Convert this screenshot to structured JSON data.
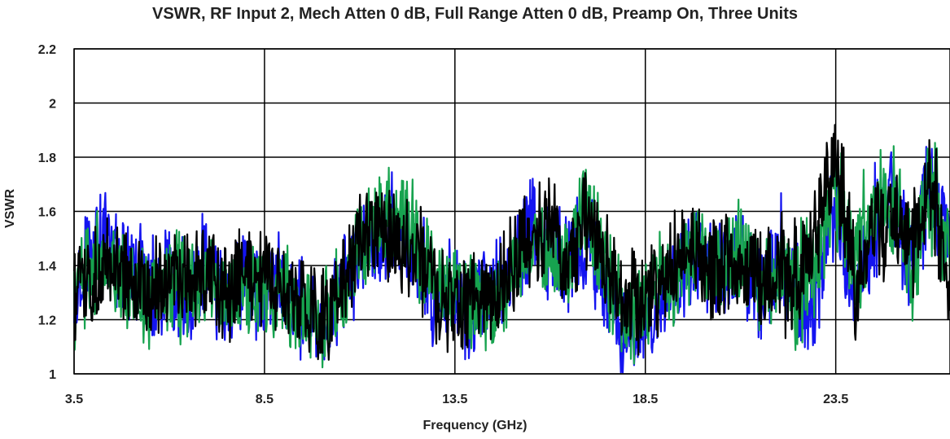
{
  "chart_data": {
    "type": "line",
    "title": "VSWR, RF Input 2, Mech Atten 0 dB, Full Range Atten 0 dB, Preamp On, Three Units",
    "xlabel": "Frequency (GHz)",
    "ylabel": "VSWR",
    "xlim": [
      3.5,
      26.5
    ],
    "ylim": [
      1,
      2.2
    ],
    "x_ticks": [
      3.5,
      8.5,
      13.5,
      18.5,
      23.5
    ],
    "x_tick_labels": [
      "3.5",
      "8.5",
      "13.5",
      "18.5",
      "23.5"
    ],
    "y_ticks": [
      1,
      1.2,
      1.4,
      1.6,
      1.8,
      2,
      2.2
    ],
    "y_tick_labels": [
      "1",
      "1.2",
      "1.4",
      "1.6",
      "1.8",
      "2",
      "2.2"
    ],
    "grid": true,
    "legend": "none",
    "series": [
      {
        "color": "#1414f0",
        "x": [
          3.5,
          4.0,
          4.5,
          5.0,
          5.5,
          6.0,
          6.5,
          7.0,
          7.5,
          8.0,
          8.5,
          9.0,
          9.5,
          10.0,
          10.5,
          11.0,
          11.5,
          12.0,
          12.5,
          13.0,
          13.5,
          14.0,
          14.5,
          15.0,
          15.5,
          16.0,
          16.5,
          17.0,
          17.5,
          18.0,
          18.5,
          19.0,
          19.5,
          20.0,
          20.5,
          21.0,
          21.5,
          22.0,
          22.5,
          23.0,
          23.5,
          24.0,
          24.5,
          25.0,
          25.5,
          26.0,
          26.5
        ],
        "y": [
          1.3,
          1.52,
          1.45,
          1.38,
          1.3,
          1.36,
          1.28,
          1.42,
          1.25,
          1.38,
          1.3,
          1.34,
          1.22,
          1.18,
          1.3,
          1.42,
          1.5,
          1.55,
          1.4,
          1.3,
          1.28,
          1.24,
          1.3,
          1.38,
          1.55,
          1.45,
          1.4,
          1.52,
          1.25,
          1.15,
          1.2,
          1.3,
          1.38,
          1.45,
          1.35,
          1.42,
          1.3,
          1.45,
          1.28,
          1.35,
          1.6,
          1.3,
          1.55,
          1.65,
          1.4,
          1.75,
          1.45
        ]
      },
      {
        "color": "#17a34f",
        "x": [
          3.5,
          4.0,
          4.5,
          5.0,
          5.5,
          6.0,
          6.5,
          7.0,
          7.5,
          8.0,
          8.5,
          9.0,
          9.5,
          10.0,
          10.5,
          11.0,
          11.5,
          12.0,
          12.5,
          13.0,
          13.5,
          14.0,
          14.5,
          15.0,
          15.5,
          16.0,
          16.5,
          17.0,
          17.5,
          18.0,
          18.5,
          19.0,
          19.5,
          20.0,
          20.5,
          21.0,
          21.5,
          22.0,
          22.5,
          23.0,
          23.5,
          24.0,
          24.5,
          25.0,
          25.5,
          26.0,
          26.5
        ],
        "y": [
          1.25,
          1.4,
          1.38,
          1.32,
          1.28,
          1.34,
          1.3,
          1.36,
          1.28,
          1.32,
          1.32,
          1.3,
          1.25,
          1.22,
          1.28,
          1.45,
          1.55,
          1.62,
          1.48,
          1.32,
          1.3,
          1.25,
          1.28,
          1.35,
          1.48,
          1.42,
          1.42,
          1.6,
          1.35,
          1.2,
          1.25,
          1.35,
          1.4,
          1.42,
          1.38,
          1.45,
          1.32,
          1.4,
          1.3,
          1.45,
          1.7,
          1.4,
          1.6,
          1.65,
          1.45,
          1.7,
          1.4
        ]
      },
      {
        "color": "#000000",
        "x": [
          3.5,
          4.0,
          4.5,
          5.0,
          5.5,
          6.0,
          6.5,
          7.0,
          7.5,
          8.0,
          8.5,
          9.0,
          9.5,
          10.0,
          10.5,
          11.0,
          11.5,
          12.0,
          12.5,
          13.0,
          13.5,
          14.0,
          14.5,
          15.0,
          15.5,
          16.0,
          16.5,
          17.0,
          17.5,
          18.0,
          18.5,
          19.0,
          19.5,
          20.0,
          20.5,
          21.0,
          21.5,
          22.0,
          22.5,
          23.0,
          23.5,
          24.0,
          24.5,
          25.0,
          25.5,
          26.0,
          26.5
        ],
        "y": [
          1.28,
          1.35,
          1.4,
          1.33,
          1.3,
          1.32,
          1.35,
          1.38,
          1.3,
          1.36,
          1.34,
          1.3,
          1.26,
          1.2,
          1.3,
          1.48,
          1.55,
          1.5,
          1.45,
          1.3,
          1.26,
          1.25,
          1.3,
          1.4,
          1.5,
          1.55,
          1.45,
          1.55,
          1.4,
          1.25,
          1.28,
          1.35,
          1.45,
          1.42,
          1.4,
          1.38,
          1.35,
          1.4,
          1.35,
          1.5,
          1.85,
          1.35,
          1.55,
          1.6,
          1.5,
          1.7,
          1.35
        ]
      }
    ]
  }
}
